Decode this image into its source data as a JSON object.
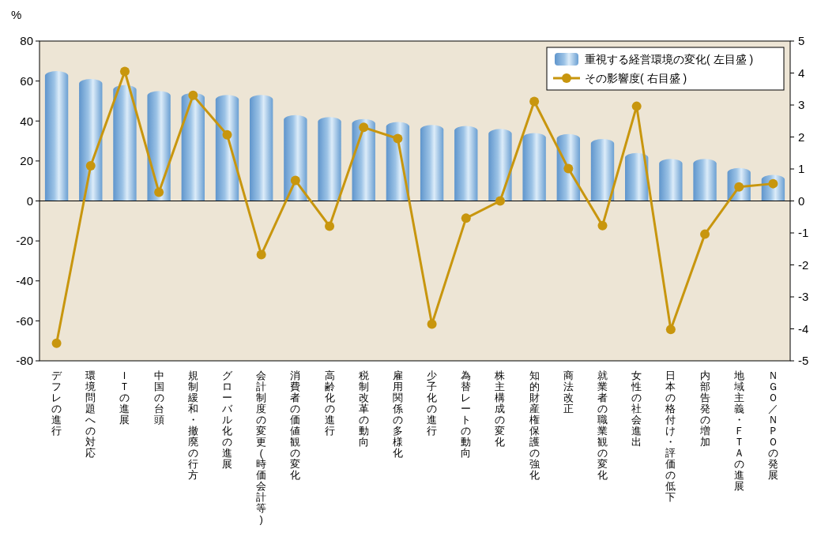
{
  "chart_data": {
    "type": "bar",
    "ylabel": "%",
    "categories": [
      "デフレの進行",
      "環境問題への対応",
      "ＩＴの進展",
      "中国の台頭",
      "規制緩和・撤廃の行方",
      "グローバル化の進展",
      "会計制度の変更(時価会計等)",
      "消費者の価値観の変化",
      "高齢化の進行",
      "税制改革の動向",
      "雇用関係の多様化",
      "少子化の進行",
      "為替レートの動向",
      "株主構成の変化",
      "知的財産権保護の強化",
      "商法改正",
      "就業者の職業観の変化",
      "女性の社会進出",
      "日本の格付け・評価の低下",
      "内部告発の増加",
      "地域主義・ＦＴＡの進展",
      "ＮＧＯ／ＮＰＯの発展"
    ],
    "series": [
      {
        "name": "重視する経営環境の変化( 左目盛 )",
        "color": "#9cc3e6",
        "values": [
          65,
          61,
          58,
          55,
          54,
          53,
          53,
          43,
          42,
          41,
          39.5,
          38,
          37.5,
          36,
          34,
          33.5,
          31,
          24,
          21,
          21,
          16.5,
          13
        ]
      },
      {
        "name": "その影響度( 右目盛 )",
        "type": "line",
        "axis": "y2",
        "color": "#c8960e",
        "marker": "circle",
        "values": [
          -4.45,
          1.1,
          4.05,
          0.27,
          3.3,
          2.07,
          -1.68,
          0.64,
          -0.79,
          2.3,
          1.95,
          -3.85,
          -0.54,
          0,
          3.11,
          1.01,
          -0.77,
          2.96,
          -4.02,
          -1.04,
          0.44,
          0.54
        ]
      }
    ],
    "ylim": [
      -80,
      80
    ],
    "yticks": [
      -80,
      -60,
      -40,
      -20,
      0,
      20,
      40,
      60,
      80
    ],
    "y2lim": [
      -5,
      5
    ],
    "y2ticks": [
      -5,
      -4,
      -3,
      -2,
      -1,
      0,
      1,
      2,
      3,
      4,
      5
    ],
    "ref_lines": [
      {
        "axis": "y",
        "value": 0,
        "color": "#000000"
      }
    ],
    "legend": "top right",
    "grid": false
  }
}
